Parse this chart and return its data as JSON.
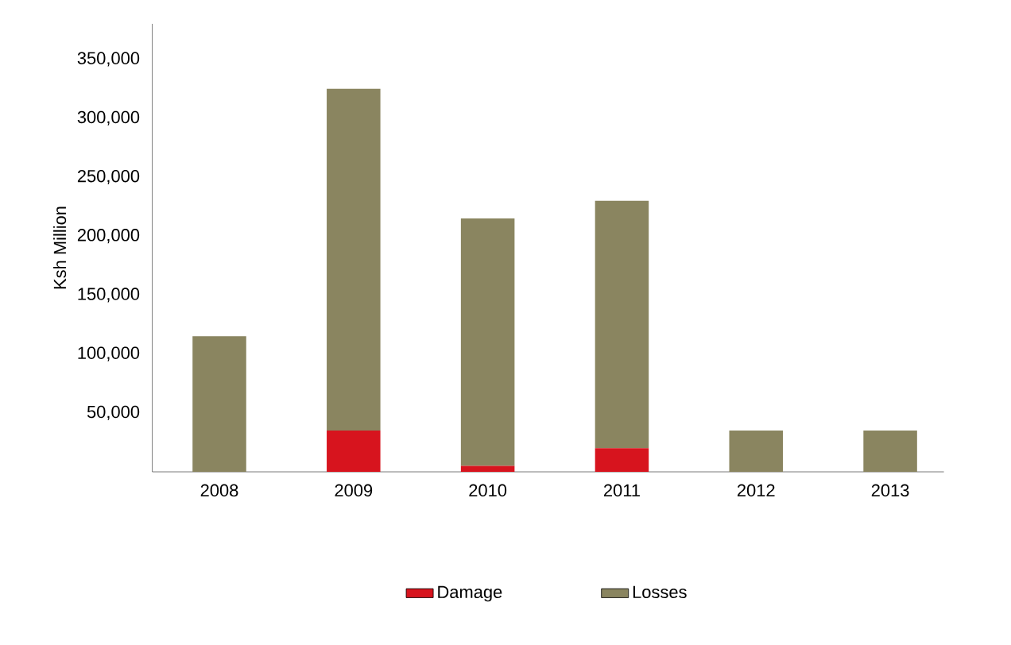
{
  "chart_data": {
    "type": "bar",
    "stacked": true,
    "ylabel": "Ksh Million",
    "categories": [
      "2008",
      "2009",
      "2010",
      "2011",
      "2012",
      "2013"
    ],
    "series": [
      {
        "name": "Damage",
        "color": "#d7141e",
        "values": [
          0,
          35000,
          5000,
          20000,
          0,
          0
        ]
      },
      {
        "name": "Losses",
        "color": "#8a8560",
        "values": [
          115000,
          290000,
          210000,
          210000,
          35000,
          35000
        ]
      }
    ],
    "ylim": [
      0,
      380000
    ],
    "yticks": [
      {
        "value": 50000,
        "label": "50,000"
      },
      {
        "value": 100000,
        "label": "100,000"
      },
      {
        "value": 150000,
        "label": "150,000"
      },
      {
        "value": 200000,
        "label": "200,000"
      },
      {
        "value": 250000,
        "label": "250,000"
      },
      {
        "value": 300000,
        "label": "300,000"
      },
      {
        "value": 350000,
        "label": "350,000"
      }
    ],
    "legend": "bottom"
  }
}
